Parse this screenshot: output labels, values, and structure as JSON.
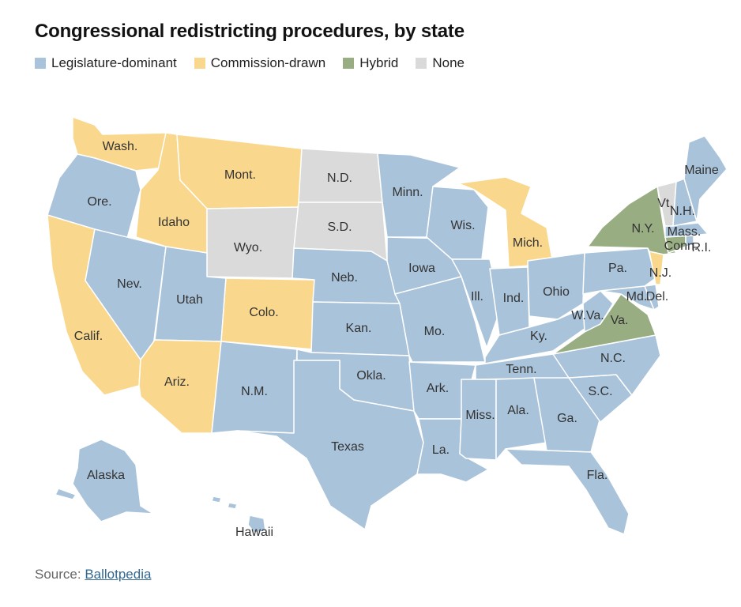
{
  "title": "Congressional redistricting procedures, by state",
  "legend": [
    {
      "key": "legislature",
      "label": "Legislature-dominant",
      "color": "#a9c3da"
    },
    {
      "key": "commission",
      "label": "Commission-drawn",
      "color": "#f9d88e"
    },
    {
      "key": "hybrid",
      "label": "Hybrid",
      "color": "#98ad82"
    },
    {
      "key": "none",
      "label": "None",
      "color": "#dadada"
    }
  ],
  "states": {
    "wash": {
      "label": "Wash.",
      "category": "commission"
    },
    "ore": {
      "label": "Ore.",
      "category": "legislature"
    },
    "calif": {
      "label": "Calif.",
      "category": "commission"
    },
    "nev": {
      "label": "Nev.",
      "category": "legislature"
    },
    "idaho": {
      "label": "Idaho",
      "category": "commission"
    },
    "mont": {
      "label": "Mont.",
      "category": "commission"
    },
    "wyo": {
      "label": "Wyo.",
      "category": "none"
    },
    "utah": {
      "label": "Utah",
      "category": "legislature"
    },
    "ariz": {
      "label": "Ariz.",
      "category": "commission"
    },
    "colo": {
      "label": "Colo.",
      "category": "commission"
    },
    "nm": {
      "label": "N.M.",
      "category": "legislature"
    },
    "nd": {
      "label": "N.D.",
      "category": "none"
    },
    "sd": {
      "label": "S.D.",
      "category": "none"
    },
    "neb": {
      "label": "Neb.",
      "category": "legislature"
    },
    "kan": {
      "label": "Kan.",
      "category": "legislature"
    },
    "okla": {
      "label": "Okla.",
      "category": "legislature"
    },
    "texas": {
      "label": "Texas",
      "category": "legislature"
    },
    "minn": {
      "label": "Minn.",
      "category": "legislature"
    },
    "iowa": {
      "label": "Iowa",
      "category": "legislature"
    },
    "mo": {
      "label": "Mo.",
      "category": "legislature"
    },
    "ark": {
      "label": "Ark.",
      "category": "legislature"
    },
    "la": {
      "label": "La.",
      "category": "legislature"
    },
    "wis": {
      "label": "Wis.",
      "category": "legislature"
    },
    "ill": {
      "label": "Ill.",
      "category": "legislature"
    },
    "mich": {
      "label": "Mich.",
      "category": "commission"
    },
    "ind": {
      "label": "Ind.",
      "category": "legislature"
    },
    "ohio": {
      "label": "Ohio",
      "category": "legislature"
    },
    "ky": {
      "label": "Ky.",
      "category": "legislature"
    },
    "tenn": {
      "label": "Tenn.",
      "category": "legislature"
    },
    "miss": {
      "label": "Miss.",
      "category": "legislature"
    },
    "ala": {
      "label": "Ala.",
      "category": "legislature"
    },
    "ga": {
      "label": "Ga.",
      "category": "legislature"
    },
    "fla": {
      "label": "Fla.",
      "category": "legislature"
    },
    "sc": {
      "label": "S.C.",
      "category": "legislature"
    },
    "nc": {
      "label": "N.C.",
      "category": "legislature"
    },
    "va": {
      "label": "Va.",
      "category": "hybrid"
    },
    "wva": {
      "label": "W.Va.",
      "category": "legislature"
    },
    "md": {
      "label": "Md.",
      "category": "legislature"
    },
    "del": {
      "label": "Del.",
      "category": "legislature"
    },
    "pa": {
      "label": "Pa.",
      "category": "legislature"
    },
    "nj": {
      "label": "N.J.",
      "category": "commission"
    },
    "ny": {
      "label": "N.Y.",
      "category": "hybrid"
    },
    "conn": {
      "label": "Conn.",
      "category": "hybrid"
    },
    "ri": {
      "label": "R.I.",
      "category": "legislature"
    },
    "mass": {
      "label": "Mass.",
      "category": "legislature"
    },
    "vt": {
      "label": "Vt.",
      "category": "none"
    },
    "nh": {
      "label": "N.H.",
      "category": "legislature"
    },
    "maine": {
      "label": "Maine",
      "category": "legislature"
    },
    "alaska": {
      "label": "Alaska",
      "category": "legislature"
    },
    "hawaii": {
      "label": "Hawaii",
      "category": "legislature"
    }
  },
  "source": {
    "prefix": "Source: ",
    "link_text": "Ballotpedia"
  }
}
